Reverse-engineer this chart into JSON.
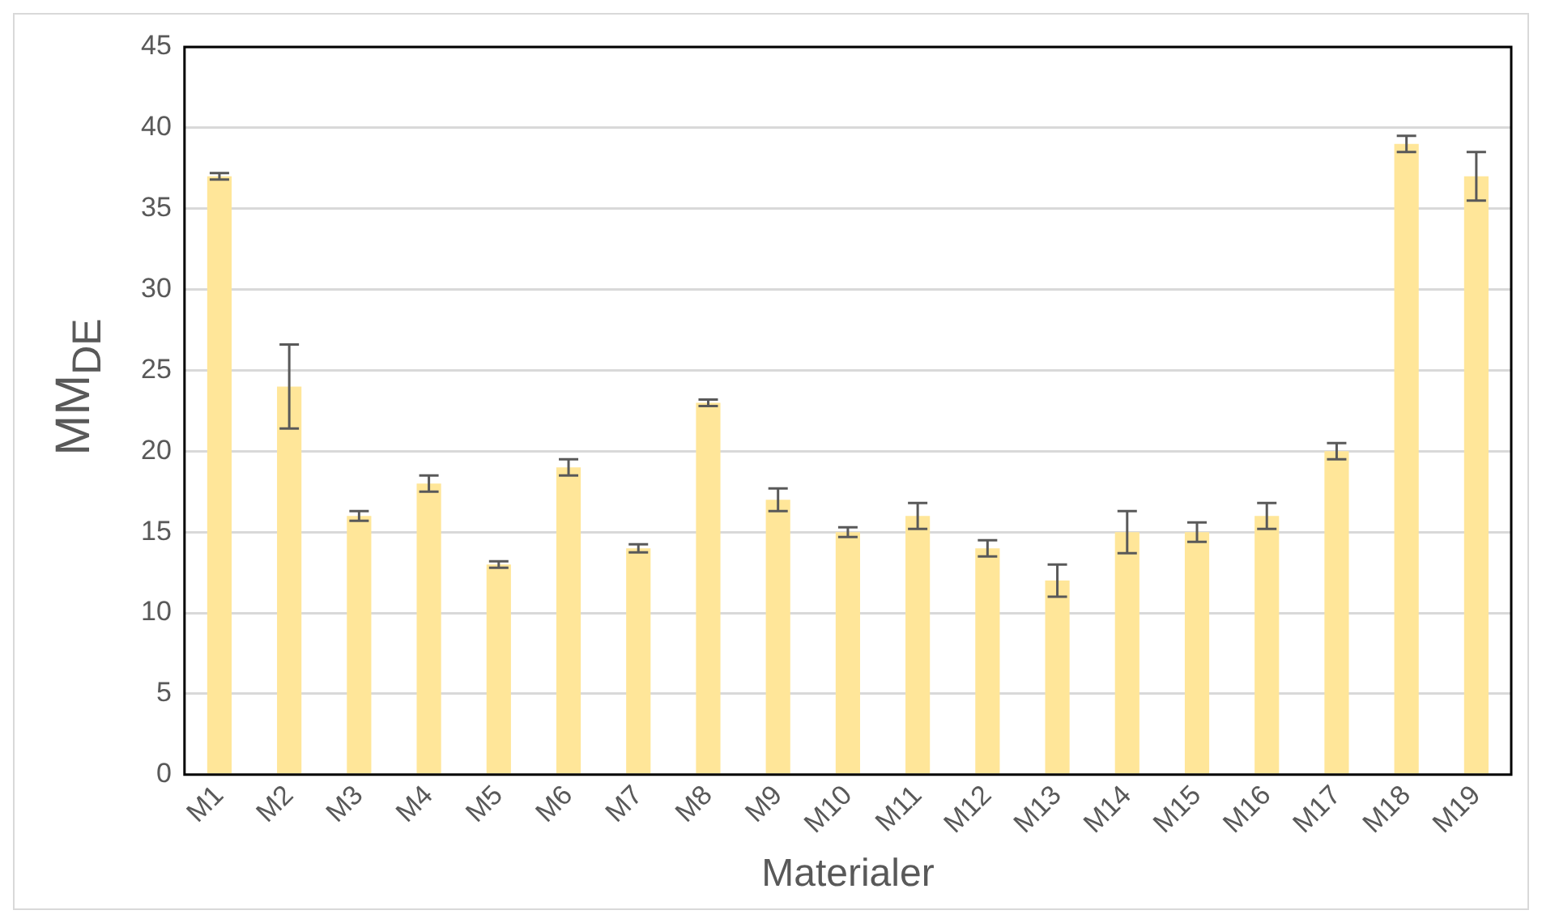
{
  "chart_data": {
    "type": "bar",
    "xlabel": "Materialer",
    "ylabel": "MM$_{DE}$",
    "categories": [
      "M1",
      "M2",
      "M3",
      "M4",
      "M5",
      "M6",
      "M7",
      "M8",
      "M9",
      "M10",
      "M11",
      "M12",
      "M13",
      "M14",
      "M15",
      "M16",
      "M17",
      "M18",
      "M19"
    ],
    "values": [
      37,
      24,
      16,
      18,
      13,
      19,
      14,
      23,
      17,
      15,
      16,
      14,
      12,
      15,
      15,
      16,
      20,
      39,
      37
    ],
    "errors": [
      0.2,
      2.6,
      0.3,
      0.5,
      0.2,
      0.5,
      0.25,
      0.2,
      0.7,
      0.3,
      0.8,
      0.5,
      1.0,
      1.3,
      0.6,
      0.8,
      0.5,
      0.5,
      1.5
    ],
    "color": "#ffe699",
    "ylim": [
      0,
      45
    ],
    "yticks": [
      0,
      5,
      10,
      15,
      20,
      25,
      30,
      35,
      40,
      45
    ],
    "grid": "y",
    "legend": false
  }
}
